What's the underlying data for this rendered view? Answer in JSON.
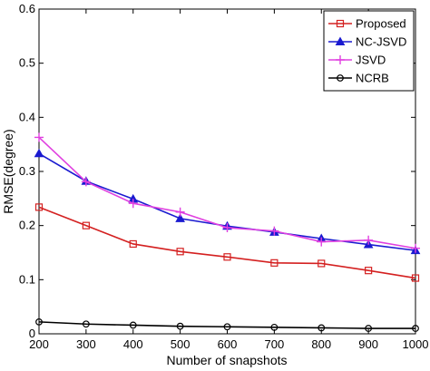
{
  "chart_data": {
    "type": "line",
    "xlabel": "Number of snapshots",
    "ylabel": "RMSE(degree)",
    "x": [
      200,
      300,
      400,
      500,
      600,
      700,
      800,
      900,
      1000
    ],
    "xlim": [
      200,
      1000
    ],
    "ylim": [
      0,
      0.6
    ],
    "yticks": [
      0,
      0.1,
      0.2,
      0.3,
      0.4,
      0.5,
      0.6
    ],
    "xticks": [
      200,
      300,
      400,
      500,
      600,
      700,
      800,
      900,
      1000
    ],
    "grid": false,
    "legend_position": "top-right",
    "series": [
      {
        "name": "Proposed",
        "color": "#d42020",
        "marker": "square",
        "values": [
          0.234,
          0.2,
          0.166,
          0.152,
          0.142,
          0.131,
          0.13,
          0.117,
          0.103
        ]
      },
      {
        "name": "NC-JSVD",
        "color": "#1a1ad0",
        "marker": "triangle",
        "values": [
          0.333,
          0.282,
          0.249,
          0.213,
          0.199,
          0.188,
          0.176,
          0.165,
          0.154
        ]
      },
      {
        "name": "JSVD",
        "color": "#e040e0",
        "marker": "plus",
        "values": [
          0.363,
          0.281,
          0.241,
          0.225,
          0.196,
          0.19,
          0.17,
          0.173,
          0.158
        ]
      },
      {
        "name": "NCRB",
        "color": "#000000",
        "marker": "circle",
        "values": [
          0.022,
          0.018,
          0.016,
          0.014,
          0.013,
          0.012,
          0.011,
          0.01,
          0.01
        ]
      }
    ]
  }
}
